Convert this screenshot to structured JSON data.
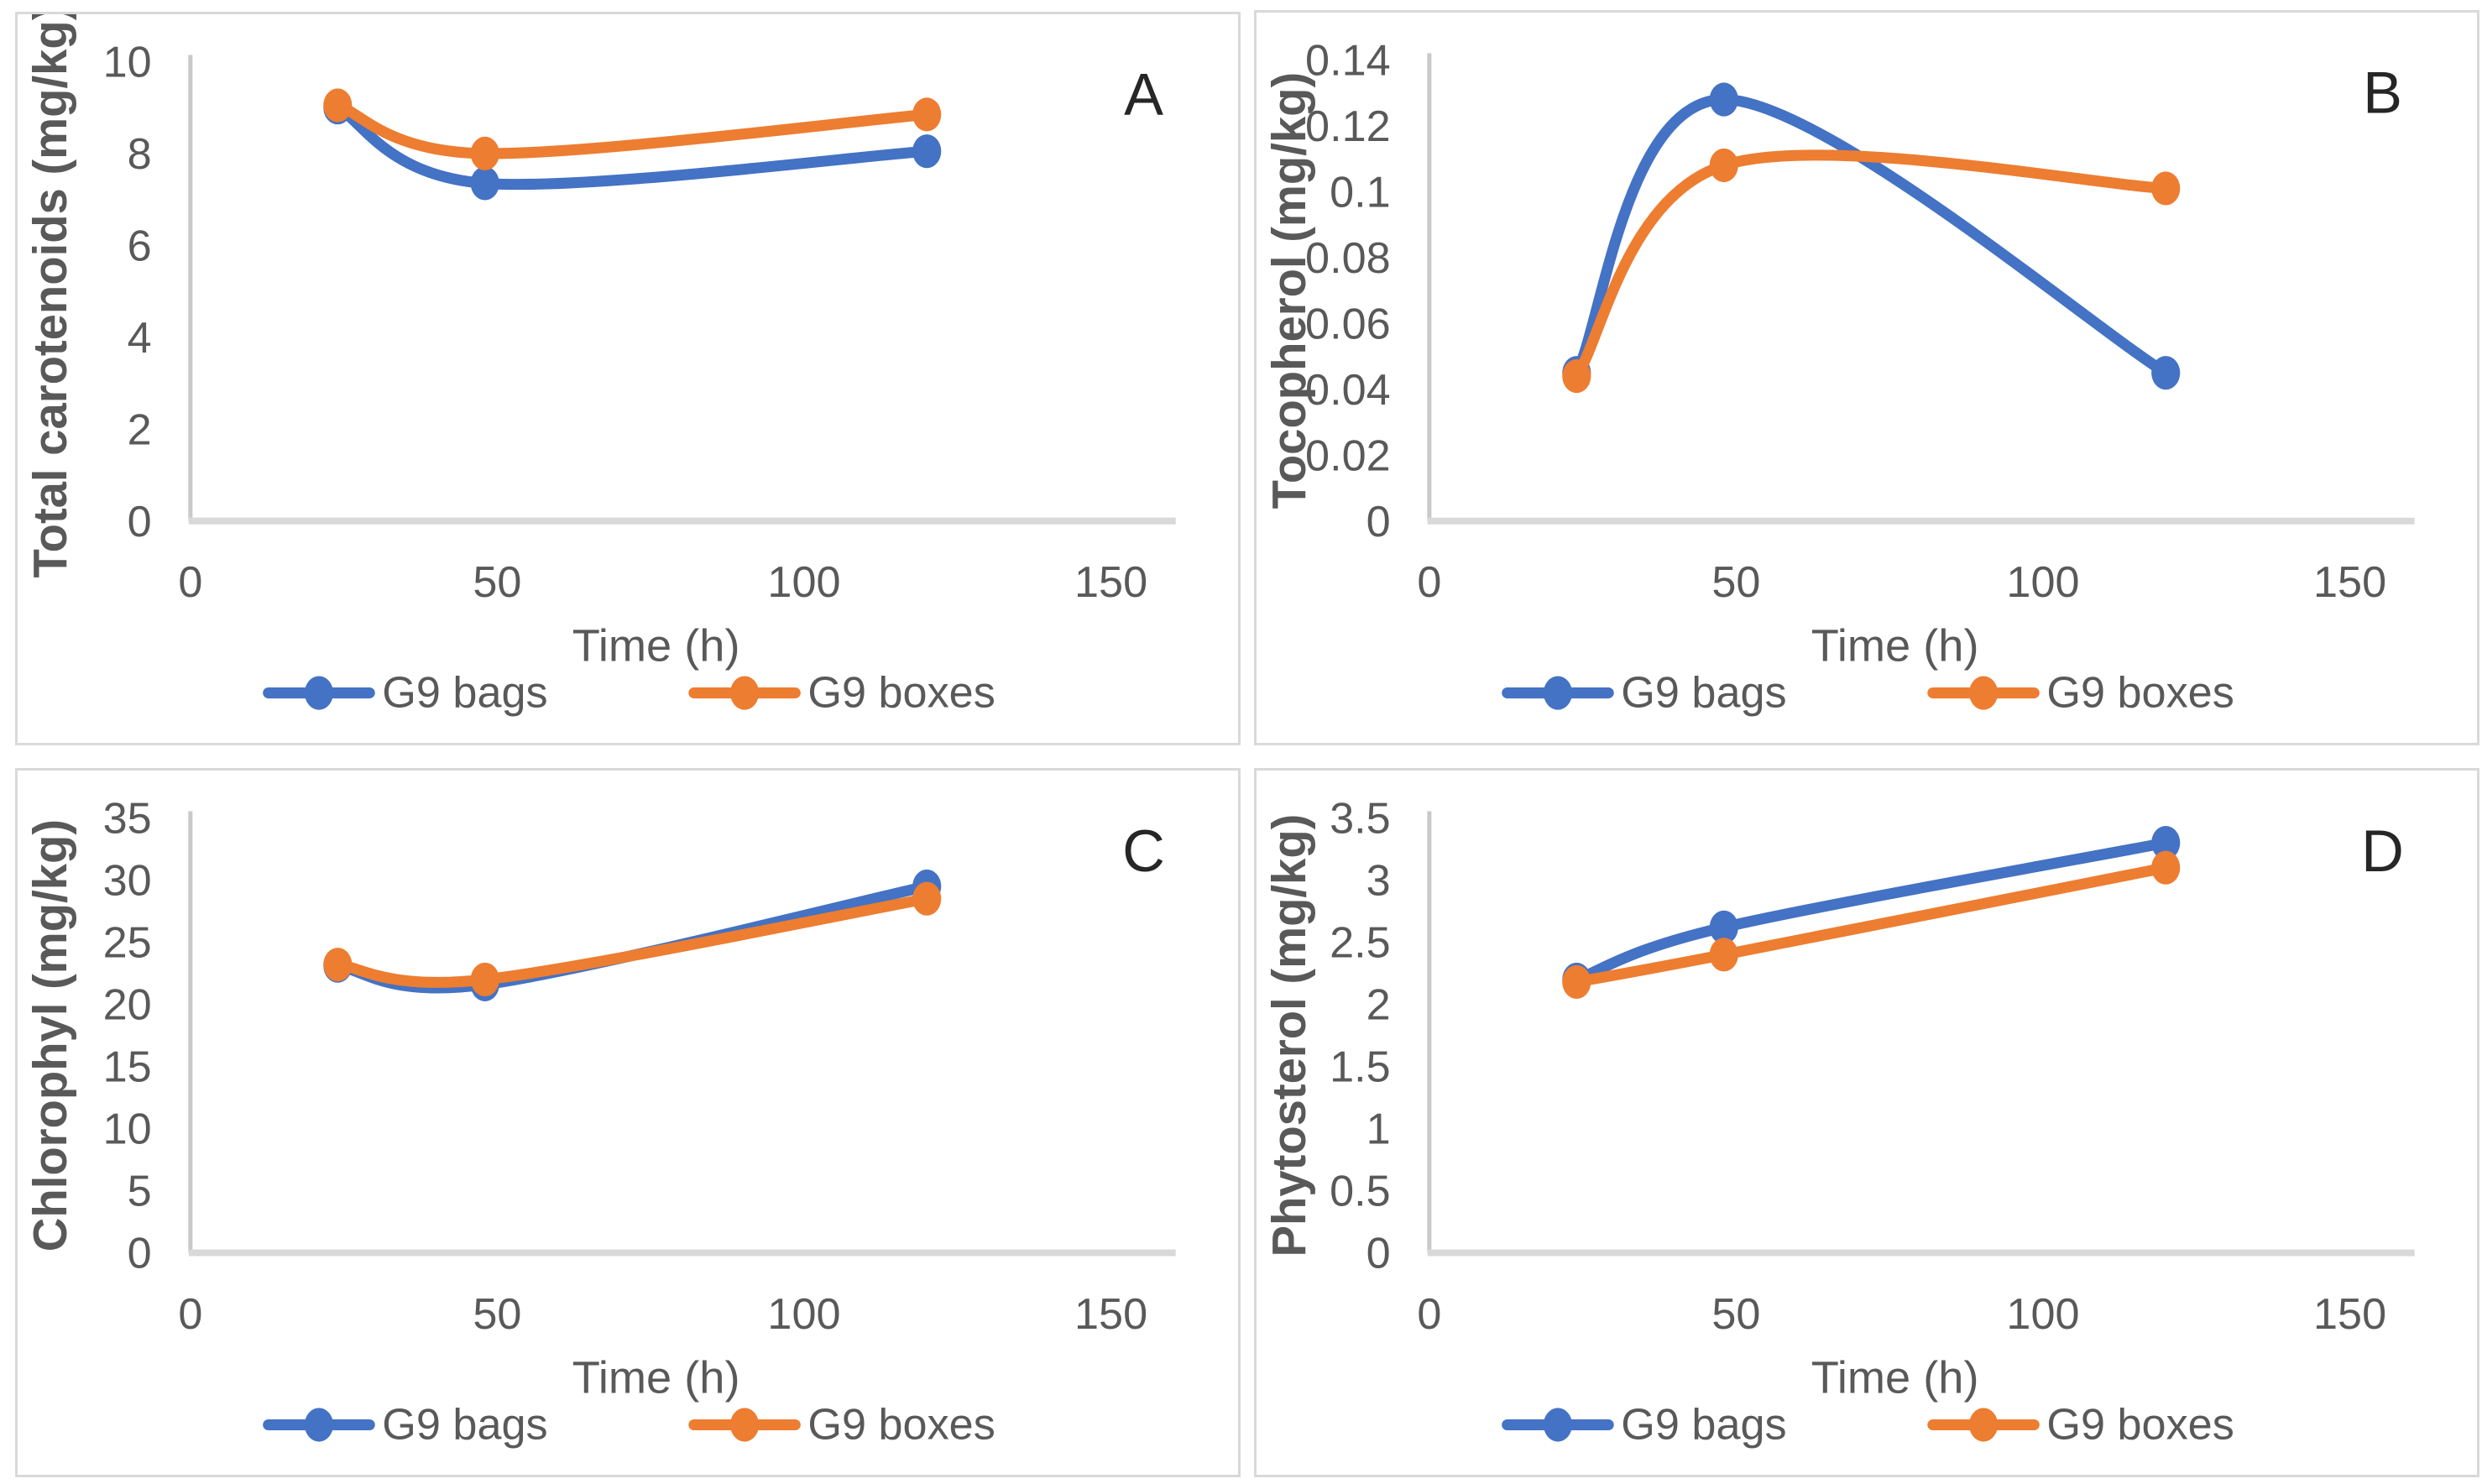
{
  "figure": {
    "description": "Four-panel Excel-style line chart figure comparing G9 bags and G9 boxes over storage time",
    "background": "#ffffff",
    "panel_border_color": "#d9d9d9"
  },
  "colors": {
    "g9_bags": "#4472C4",
    "g9_boxes": "#ED7D31",
    "axis_line": "#c9c9c9",
    "baseline": "#d9d9d9",
    "tick_text": "#595959",
    "axis_title_text": "#595959",
    "panel_letter": "#262626"
  },
  "legend": {
    "entries": [
      {
        "label": "G9 bags",
        "color": "#4472C4"
      },
      {
        "label": "G9 boxes",
        "color": "#ED7D31"
      }
    ]
  },
  "chart_data": [
    {
      "type": "line",
      "panel_label": "A",
      "ylabel": "Total carotenoids (mg/kg)",
      "xlabel": "Time (h)",
      "x": [
        24,
        48,
        120
      ],
      "series": [
        {
          "name": "G9 bags",
          "color": "#4472C4",
          "values": [
            9.0,
            7.35,
            8.05
          ]
        },
        {
          "name": "G9 boxes",
          "color": "#ED7D31",
          "values": [
            9.05,
            8.0,
            8.85
          ]
        }
      ],
      "xlim": [
        0,
        150
      ],
      "ylim": [
        0,
        10
      ],
      "xticks": [
        0,
        50,
        100,
        150
      ],
      "yticks": [
        0,
        2,
        4,
        6,
        8,
        10
      ],
      "ytick_labels": [
        "0",
        "2",
        "4",
        "6",
        "8",
        "10"
      ],
      "grid": false,
      "legend_position": "bottom",
      "smooth": true
    },
    {
      "type": "line",
      "panel_label": "B",
      "ylabel": "Tocopherol (mg/kg)",
      "xlabel": "Time (h)",
      "x": [
        24,
        48,
        120
      ],
      "series": [
        {
          "name": "G9 bags",
          "color": "#4472C4",
          "values": [
            0.045,
            0.128,
            0.045
          ]
        },
        {
          "name": "G9 boxes",
          "color": "#ED7D31",
          "values": [
            0.044,
            0.108,
            0.101
          ]
        }
      ],
      "xlim": [
        0,
        150
      ],
      "ylim": [
        0,
        0.14
      ],
      "xticks": [
        0,
        50,
        100,
        150
      ],
      "yticks": [
        0,
        0.02,
        0.04,
        0.06,
        0.08,
        0.1,
        0.12,
        0.14
      ],
      "ytick_labels": [
        "0",
        "0.02",
        "0.04",
        "0.06",
        "0.08",
        "0.1",
        "0.12",
        "0.14"
      ],
      "grid": false,
      "legend_position": "bottom",
      "smooth": true
    },
    {
      "type": "line",
      "panel_label": "C",
      "ylabel": "Chlorophyl (mg/kg)",
      "xlabel": "Time (h)",
      "x": [
        24,
        48,
        120
      ],
      "series": [
        {
          "name": "G9 bags",
          "color": "#4472C4",
          "values": [
            23.1,
            21.6,
            29.5
          ]
        },
        {
          "name": "G9 boxes",
          "color": "#ED7D31",
          "values": [
            23.2,
            22.0,
            28.5
          ]
        }
      ],
      "xlim": [
        0,
        150
      ],
      "ylim": [
        0,
        35
      ],
      "xticks": [
        0,
        50,
        100,
        150
      ],
      "yticks": [
        0,
        5,
        10,
        15,
        20,
        25,
        30,
        35
      ],
      "ytick_labels": [
        "0",
        "5",
        "10",
        "15",
        "20",
        "25",
        "30",
        "35"
      ],
      "grid": false,
      "legend_position": "bottom",
      "smooth": true
    },
    {
      "type": "line",
      "panel_label": "D",
      "ylabel": "Phytosterol (mg/kg)",
      "xlabel": "Time (h)",
      "x": [
        24,
        48,
        120
      ],
      "series": [
        {
          "name": "G9 bags",
          "color": "#4472C4",
          "values": [
            2.2,
            2.62,
            3.3
          ]
        },
        {
          "name": "G9 boxes",
          "color": "#ED7D31",
          "values": [
            2.18,
            2.4,
            3.1
          ]
        }
      ],
      "xlim": [
        0,
        150
      ],
      "ylim": [
        0,
        3.5
      ],
      "xticks": [
        0,
        50,
        100,
        150
      ],
      "yticks": [
        0,
        0.5,
        1,
        1.5,
        2,
        2.5,
        3,
        3.5
      ],
      "ytick_labels": [
        "0",
        "0.5",
        "1",
        "1.5",
        "2",
        "2.5",
        "3",
        "3.5"
      ],
      "grid": false,
      "legend_position": "bottom",
      "smooth": true
    }
  ]
}
